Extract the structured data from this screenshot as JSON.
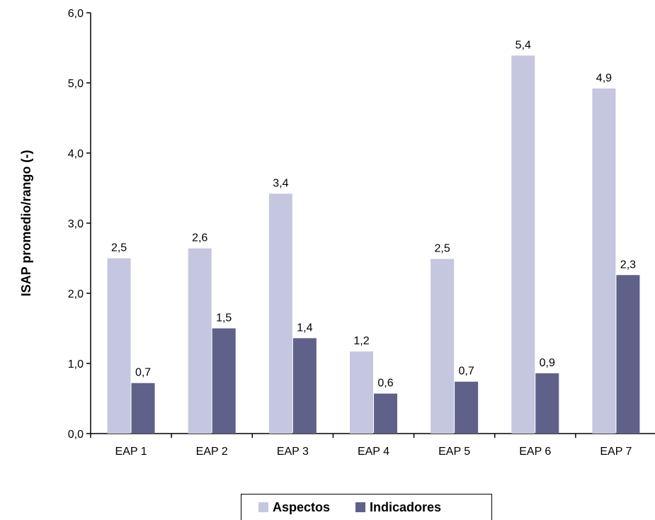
{
  "chart_data": {
    "type": "bar",
    "title": "",
    "xlabel": "",
    "ylabel": "ISAP promedio/rango (-)",
    "ylim": [
      0,
      6
    ],
    "yticks": [
      "0,0",
      "1,0",
      "2,0",
      "3,0",
      "4,0",
      "5,0",
      "6,0"
    ],
    "categories": [
      "EAP 1",
      "EAP 2",
      "EAP 3",
      "EAP 4",
      "EAP 5",
      "EAP 6",
      "EAP 7"
    ],
    "series": [
      {
        "name": "Aspectos",
        "color": "#c5c7e0",
        "values": [
          2.5,
          2.64,
          3.42,
          1.17,
          2.49,
          5.39,
          4.92
        ],
        "labels": [
          "2,5",
          "2,6",
          "3,4",
          "1,2",
          "2,5",
          "5,4",
          "4,9"
        ]
      },
      {
        "name": "Indicadores",
        "color": "#5f6189",
        "values": [
          0.72,
          1.5,
          1.36,
          0.57,
          0.74,
          0.86,
          2.26
        ],
        "labels": [
          "0,7",
          "1,5",
          "1,4",
          "0,6",
          "0,7",
          "0,9",
          "2,3"
        ]
      }
    ],
    "grid": false,
    "legend_position": "bottom-center"
  }
}
